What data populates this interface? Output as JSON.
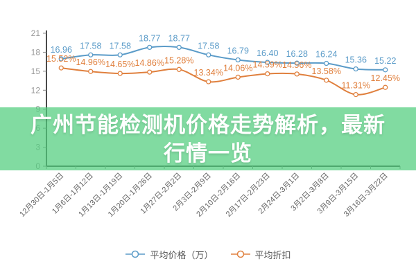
{
  "banner": {
    "title": "广州节能检测机价格走势解析，最新行情一览",
    "bg_color": "rgba(80,205,125,0.72)",
    "text_color": "#ffffff"
  },
  "legend": {
    "position": "bottom",
    "items": [
      {
        "label": "平均价格（万）",
        "color": "#5A9BC8"
      },
      {
        "label": "平均折扣",
        "color": "#E0803E"
      }
    ]
  },
  "axis": {
    "line_color": "#4a4a4a",
    "y_tick_color": "#999999",
    "x_tick_color": "#666666"
  },
  "chart_data": {
    "type": "line",
    "title": "",
    "xlabel": "",
    "ylabel": "",
    "grid": false,
    "legend_position": "bottom",
    "ylim": [
      0,
      21
    ],
    "y_ticks": [
      0,
      3,
      6,
      9,
      12,
      15,
      18,
      21
    ],
    "categories": [
      "12月30日-1月5日",
      "1月6日-1月12日",
      "1月13日-1月19日",
      "1月20日-1月26日",
      "1月27日-2月2日",
      "2月3日-2月9日",
      "2月10日-2月16日",
      "2月17日-2月23日",
      "2月24日-3月1日",
      "3月2日-3月8日",
      "3月9日-3月15日",
      "3月16日-3月22日"
    ],
    "series": [
      {
        "name": "平均价格（万）",
        "color": "#5A9BC8",
        "label_suffix": "",
        "values": [
          16.96,
          17.58,
          17.58,
          18.77,
          18.77,
          17.58,
          16.79,
          16.4,
          16.28,
          16.24,
          15.36,
          15.22
        ]
      },
      {
        "name": "平均折扣",
        "color": "#E0803E",
        "label_suffix": "%",
        "values": [
          15.52,
          14.96,
          14.65,
          14.86,
          15.28,
          13.34,
          14.06,
          14.59,
          14.56,
          13.58,
          11.31,
          12.45
        ]
      }
    ]
  }
}
